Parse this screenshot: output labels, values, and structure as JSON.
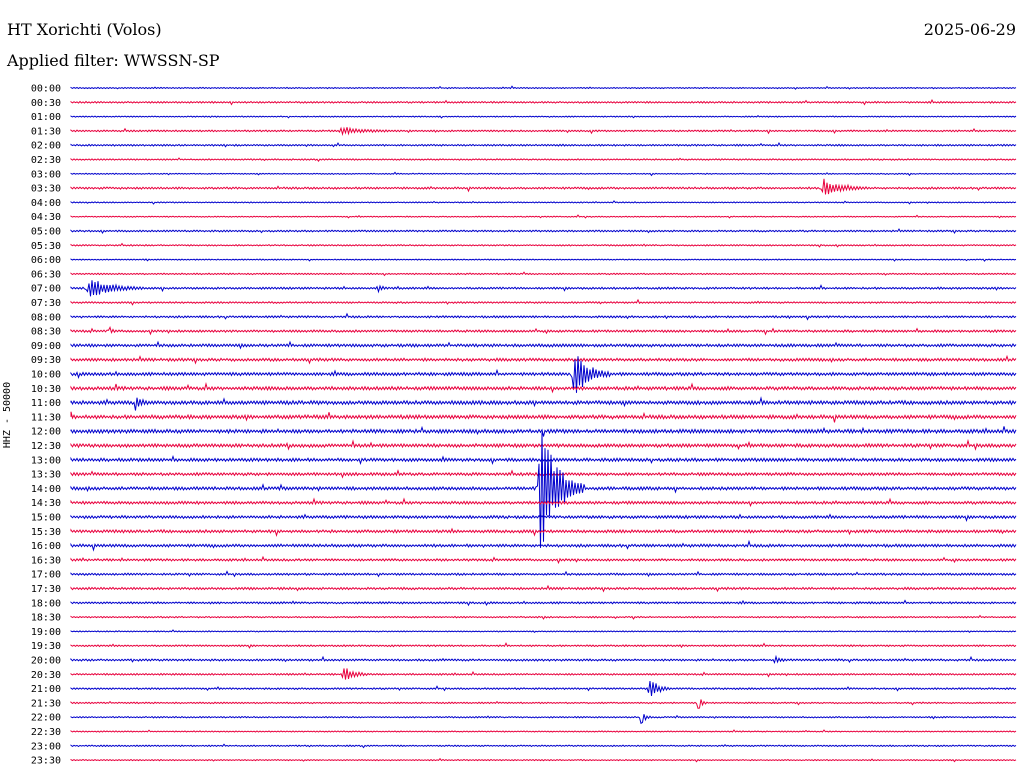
{
  "header": {
    "station": "HT Xorichti (Volos)",
    "date": "2025-06-29",
    "filter": "Applied filter: WWSSN-SP"
  },
  "chart_data": {
    "type": "line",
    "title": "HT Xorichti (Volos)",
    "ylabel": "HHZ - 50000",
    "xlabel": "",
    "trace_colors": [
      "#0000cc",
      "#e8003d"
    ],
    "rows": [
      "00:00",
      "00:30",
      "01:00",
      "01:30",
      "02:00",
      "02:30",
      "03:00",
      "03:30",
      "04:00",
      "04:30",
      "05:00",
      "05:30",
      "06:00",
      "06:30",
      "07:00",
      "07:30",
      "08:00",
      "08:30",
      "09:00",
      "09:30",
      "10:00",
      "10:30",
      "11:00",
      "11:30",
      "12:00",
      "12:30",
      "13:00",
      "13:30",
      "14:00",
      "14:30",
      "15:00",
      "15:30",
      "16:00",
      "16:30",
      "17:00",
      "17:30",
      "18:00",
      "18:30",
      "19:00",
      "19:30",
      "20:00",
      "20:30",
      "21:00",
      "21:30",
      "22:00",
      "22:30",
      "23:00",
      "23:30"
    ],
    "noise_level": [
      0.4,
      0.6,
      0.4,
      0.6,
      0.6,
      0.5,
      0.4,
      0.7,
      0.4,
      0.4,
      0.6,
      0.5,
      0.4,
      0.5,
      0.7,
      0.6,
      0.7,
      0.8,
      1.0,
      1.0,
      1.1,
      1.2,
      1.3,
      1.3,
      1.3,
      1.2,
      1.1,
      1.0,
      1.1,
      1.0,
      1.0,
      1.0,
      1.0,
      0.8,
      0.7,
      0.8,
      0.7,
      0.5,
      0.4,
      0.6,
      0.7,
      0.6,
      0.6,
      0.5,
      0.5,
      0.4,
      0.5,
      0.4
    ],
    "events": [
      {
        "row": "01:30",
        "minute": 8.5,
        "amplitude": 3,
        "duration": 2
      },
      {
        "row": "03:30",
        "minute": 23.8,
        "amplitude": 9,
        "duration": 1.5
      },
      {
        "row": "07:00",
        "minute": 0.5,
        "amplitude": 10,
        "duration": 1.8
      },
      {
        "row": "07:00",
        "minute": 9.7,
        "amplitude": 5,
        "duration": 0.3
      },
      {
        "row": "08:30",
        "minute": 1.2,
        "amplitude": 3,
        "duration": 0.3
      },
      {
        "row": "10:00",
        "minute": 15.9,
        "amplitude": 26,
        "duration": 1.2
      },
      {
        "row": "11:00",
        "minute": 2.0,
        "amplitude": 9,
        "duration": 0.4
      },
      {
        "row": "14:00",
        "minute": 14.8,
        "amplitude": 70,
        "duration": 1.5
      },
      {
        "row": "20:00",
        "minute": 22.3,
        "amplitude": 5,
        "duration": 0.4
      },
      {
        "row": "20:30",
        "minute": 8.6,
        "amplitude": 9,
        "duration": 0.8
      },
      {
        "row": "21:00",
        "minute": 18.3,
        "amplitude": 12,
        "duration": 0.7
      },
      {
        "row": "21:30",
        "minute": 19.9,
        "amplitude": 6,
        "duration": 0.3
      },
      {
        "row": "22:00",
        "minute": 18.1,
        "amplitude": 6,
        "duration": 0.3
      }
    ]
  }
}
